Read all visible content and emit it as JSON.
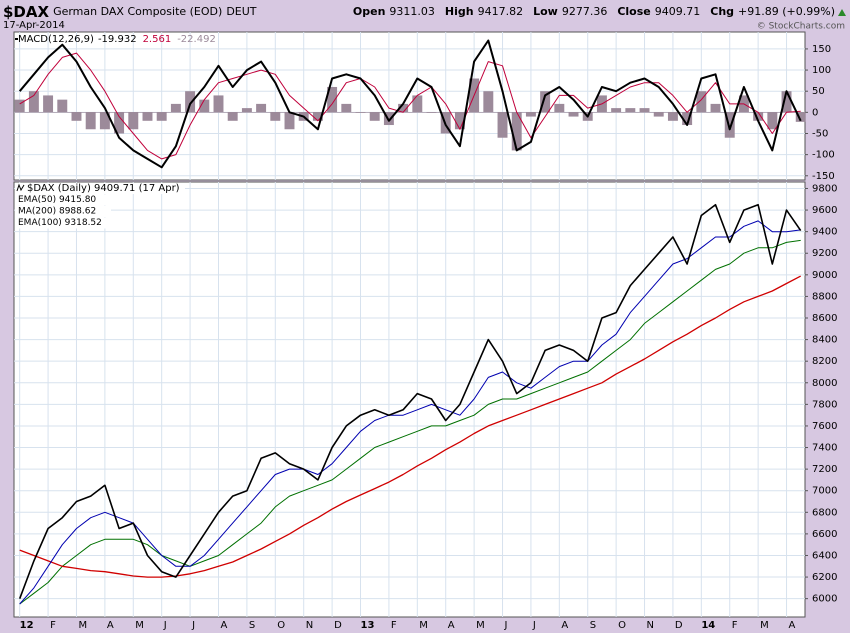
{
  "header": {
    "symbol": "$DAX",
    "name": "German DAX Composite (EOD)",
    "exchange": "DEUT",
    "date": "17-Apr-2014",
    "quote": [
      {
        "label": "Open",
        "value": "9311.03"
      },
      {
        "label": "High",
        "value": "9417.82"
      },
      {
        "label": "Low",
        "value": "9277.36"
      },
      {
        "label": "Close",
        "value": "9409.71"
      },
      {
        "label": "Chg",
        "value": "+91.89 (+0.99%)"
      }
    ],
    "credit": "© StockCharts.com"
  },
  "chart_data": [
    {
      "type": "line",
      "legend": {
        "label": "MACD(12,26,9)",
        "values": [
          "-19.932",
          "2.561",
          "-22.492"
        ]
      },
      "x": [
        0,
        0.5,
        1,
        1.5,
        2,
        2.5,
        3,
        3.5,
        4,
        4.5,
        5,
        5.5,
        6,
        6.5,
        7,
        7.5,
        8,
        8.5,
        9,
        9.5,
        10,
        10.5,
        11,
        11.5,
        12,
        12.5,
        13,
        13.5,
        14,
        14.5,
        15,
        15.5,
        16,
        16.5,
        17,
        17.5,
        18,
        18.5,
        19,
        19.5,
        20,
        20.5,
        21,
        21.5,
        22,
        22.5,
        23,
        23.5,
        24,
        24.5,
        25,
        25.5,
        26,
        26.5,
        27,
        27.5
      ],
      "series": [
        {
          "style": "line",
          "color": "#000000",
          "values": [
            50,
            90,
            130,
            160,
            120,
            60,
            10,
            -60,
            -90,
            -110,
            -130,
            -80,
            20,
            60,
            110,
            60,
            100,
            120,
            70,
            0,
            -10,
            -40,
            80,
            90,
            80,
            40,
            -20,
            20,
            80,
            60,
            -30,
            -80,
            120,
            170,
            50,
            -90,
            -70,
            40,
            60,
            30,
            -10,
            60,
            50,
            70,
            80,
            60,
            20,
            -30,
            80,
            90,
            -40,
            60,
            -20,
            -90,
            50,
            -19.932
          ]
        },
        {
          "style": "line",
          "color": "#c0003a",
          "values": [
            20,
            40,
            90,
            130,
            140,
            100,
            50,
            -10,
            -50,
            -90,
            -110,
            -100,
            -30,
            30,
            70,
            80,
            90,
            100,
            90,
            40,
            10,
            -20,
            20,
            70,
            80,
            60,
            10,
            0,
            40,
            60,
            20,
            -40,
            40,
            120,
            110,
            0,
            -60,
            -10,
            40,
            40,
            10,
            20,
            40,
            60,
            70,
            70,
            40,
            0,
            30,
            70,
            20,
            20,
            0,
            -50,
            0,
            2.561
          ]
        },
        {
          "style": "histogram",
          "color": "#9c8a9a",
          "values": [
            30,
            50,
            40,
            30,
            -20,
            -40,
            -40,
            -50,
            -40,
            -20,
            -20,
            20,
            50,
            30,
            40,
            -20,
            10,
            20,
            -20,
            -40,
            -20,
            -20,
            60,
            20,
            0,
            -20,
            -30,
            20,
            40,
            0,
            -50,
            -40,
            80,
            50,
            -60,
            -90,
            -10,
            50,
            20,
            -10,
            -20,
            40,
            10,
            10,
            10,
            -10,
            -20,
            -30,
            50,
            20,
            -60,
            40,
            -20,
            -40,
            50,
            -22.492
          ]
        }
      ],
      "xlim": [
        -0.2,
        27.65
      ],
      "ylim": [
        -160,
        190
      ],
      "yticks": [
        150,
        100,
        50,
        0,
        -50,
        -100,
        -150
      ],
      "xticks": [
        0,
        1,
        2,
        3,
        4,
        5,
        6,
        7,
        8,
        9,
        10,
        11,
        12,
        13,
        14,
        15,
        16,
        17,
        18,
        19,
        20,
        21,
        22,
        23,
        24,
        25,
        26,
        27
      ],
      "grid": true
    },
    {
      "type": "line",
      "x": [
        0,
        0.5,
        1,
        1.5,
        2,
        2.5,
        3,
        3.5,
        4,
        4.5,
        5,
        5.5,
        6,
        6.5,
        7,
        7.5,
        8,
        8.5,
        9,
        9.5,
        10,
        10.5,
        11,
        11.5,
        12,
        12.5,
        13,
        13.5,
        14,
        14.5,
        15,
        15.5,
        16,
        16.5,
        17,
        17.5,
        18,
        18.5,
        19,
        19.5,
        20,
        20.5,
        21,
        21.5,
        22,
        22.5,
        23,
        23.5,
        24,
        24.5,
        25,
        25.5,
        26,
        26.5,
        27,
        27.5
      ],
      "series": [
        {
          "name": "$DAX (Daily) 9409.71 (17 Apr)",
          "color": "#000000",
          "width": 1.6,
          "values": [
            6000,
            6350,
            6650,
            6750,
            6900,
            6950,
            7050,
            6650,
            6700,
            6400,
            6250,
            6200,
            6400,
            6600,
            6800,
            6950,
            7000,
            7300,
            7350,
            7250,
            7200,
            7100,
            7400,
            7600,
            7700,
            7750,
            7700,
            7750,
            7900,
            7850,
            7650,
            7800,
            8100,
            8400,
            8200,
            7900,
            8000,
            8300,
            8350,
            8300,
            8200,
            8600,
            8650,
            8900,
            9050,
            9200,
            9350,
            9100,
            9550,
            9650,
            9300,
            9600,
            9650,
            9100,
            9600,
            9409.71
          ]
        },
        {
          "name": "EMA(50) 9415.80",
          "color": "#0000b0",
          "width": 1,
          "values": [
            5950,
            6100,
            6300,
            6500,
            6650,
            6750,
            6800,
            6750,
            6700,
            6550,
            6400,
            6300,
            6300,
            6400,
            6550,
            6700,
            6850,
            7000,
            7150,
            7200,
            7200,
            7150,
            7250,
            7400,
            7550,
            7650,
            7700,
            7700,
            7750,
            7800,
            7750,
            7700,
            7850,
            8050,
            8100,
            8000,
            7950,
            8050,
            8150,
            8200,
            8200,
            8350,
            8450,
            8650,
            8800,
            8950,
            9100,
            9150,
            9250,
            9350,
            9350,
            9450,
            9500,
            9400,
            9400,
            9415.8
          ]
        },
        {
          "name": "MA(200) 8988.62",
          "color": "#d00000",
          "width": 1.3,
          "values": [
            6450,
            6400,
            6350,
            6300,
            6280,
            6260,
            6250,
            6230,
            6210,
            6200,
            6200,
            6210,
            6230,
            6260,
            6300,
            6340,
            6400,
            6460,
            6530,
            6600,
            6680,
            6750,
            6830,
            6900,
            6960,
            7020,
            7080,
            7150,
            7230,
            7300,
            7380,
            7450,
            7530,
            7600,
            7650,
            7700,
            7750,
            7800,
            7850,
            7900,
            7950,
            8000,
            8080,
            8150,
            8220,
            8300,
            8380,
            8450,
            8530,
            8600,
            8680,
            8750,
            8800,
            8850,
            8920,
            8988.62
          ]
        },
        {
          "name": "EMA(100) 9318.52",
          "color": "#007000",
          "width": 1,
          "values": [
            5950,
            6050,
            6150,
            6300,
            6400,
            6500,
            6550,
            6550,
            6550,
            6500,
            6400,
            6350,
            6300,
            6350,
            6400,
            6500,
            6600,
            6700,
            6850,
            6950,
            7000,
            7050,
            7100,
            7200,
            7300,
            7400,
            7450,
            7500,
            7550,
            7600,
            7600,
            7650,
            7700,
            7800,
            7850,
            7850,
            7900,
            7950,
            8000,
            8050,
            8100,
            8200,
            8300,
            8400,
            8550,
            8650,
            8750,
            8850,
            8950,
            9050,
            9100,
            9200,
            9250,
            9250,
            9300,
            9318.52
          ]
        }
      ],
      "xlim": [
        -0.2,
        27.65
      ],
      "ylim": [
        5830,
        9860
      ],
      "yticks": [
        9800,
        9600,
        9400,
        9200,
        9000,
        8800,
        8600,
        8400,
        8200,
        8000,
        7800,
        7600,
        7400,
        7200,
        7000,
        6800,
        6600,
        6400,
        6200,
        6000
      ],
      "xticks": [
        {
          "value": 0,
          "label": "12"
        },
        {
          "value": 1,
          "label": "F"
        },
        {
          "value": 2,
          "label": "M"
        },
        {
          "value": 3,
          "label": "A"
        },
        {
          "value": 4,
          "label": "M"
        },
        {
          "value": 5,
          "label": "J"
        },
        {
          "value": 6,
          "label": "J"
        },
        {
          "value": 7,
          "label": "A"
        },
        {
          "value": 8,
          "label": "S"
        },
        {
          "value": 9,
          "label": "O"
        },
        {
          "value": 10,
          "label": "N"
        },
        {
          "value": 11,
          "label": "D"
        },
        {
          "value": 12,
          "label": "13"
        },
        {
          "value": 13,
          "label": "F"
        },
        {
          "value": 14,
          "label": "M"
        },
        {
          "value": 15,
          "label": "A"
        },
        {
          "value": 16,
          "label": "M"
        },
        {
          "value": 17,
          "label": "J"
        },
        {
          "value": 18,
          "label": "J"
        },
        {
          "value": 19,
          "label": "A"
        },
        {
          "value": 20,
          "label": "S"
        },
        {
          "value": 21,
          "label": "O"
        },
        {
          "value": 22,
          "label": "N"
        },
        {
          "value": 23,
          "label": "D"
        },
        {
          "value": 24,
          "label": "14"
        },
        {
          "value": 25,
          "label": "F"
        },
        {
          "value": 26,
          "label": "M"
        },
        {
          "value": 27,
          "label": "A"
        }
      ],
      "grid": true
    }
  ]
}
